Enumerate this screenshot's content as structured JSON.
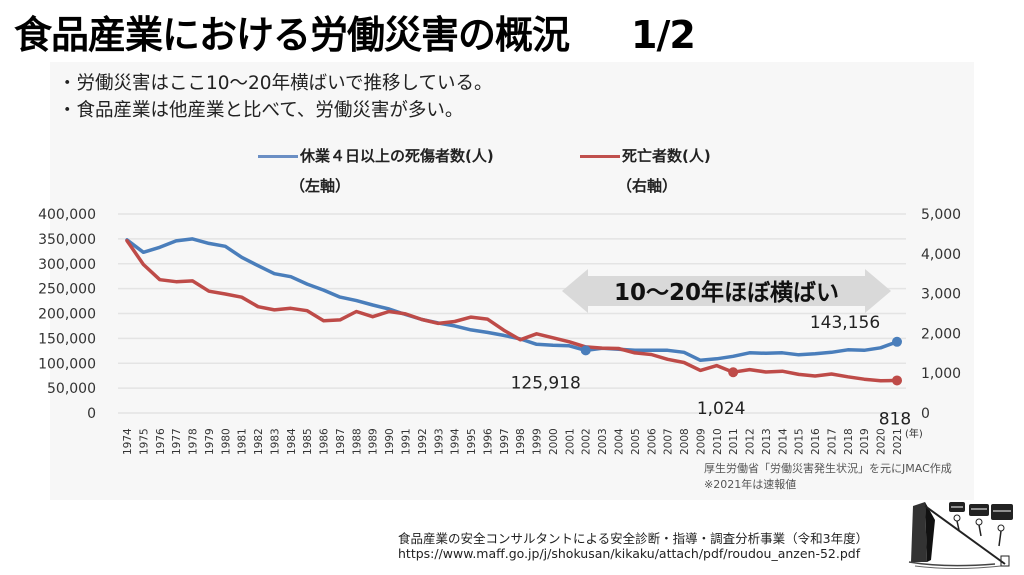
{
  "header": {
    "title": "食品産業における労働災害の概況",
    "page": "1/2"
  },
  "bullets": [
    "・労働災害はここ10～20年横ばいで推移している。",
    "・食品産業は他産業と比べて、労働災害が多い。"
  ],
  "colors": {
    "blue": "#4a7ebb",
    "red": "#be4b48",
    "arrow": "#d9d9d9",
    "grid": "#e4e4e4"
  },
  "chart_data": {
    "type": "line",
    "x": [
      1974,
      1975,
      1976,
      1977,
      1978,
      1979,
      1980,
      1981,
      1982,
      1983,
      1984,
      1985,
      1986,
      1987,
      1988,
      1989,
      1990,
      1991,
      1992,
      1993,
      1994,
      1995,
      1996,
      1997,
      1998,
      1999,
      2000,
      2001,
      2002,
      2003,
      2004,
      2005,
      2006,
      2007,
      2008,
      2009,
      2010,
      2011,
      2012,
      2013,
      2014,
      2015,
      2016,
      2017,
      2018,
      2019,
      2020,
      2021
    ],
    "x_tick_labels": [
      "1974",
      "1975",
      "1976",
      "1977",
      "1978",
      "1979",
      "1980",
      "1981",
      "1982",
      "1983",
      "1984",
      "1985",
      "1986",
      "1987",
      "1988",
      "1989",
      "1990",
      "1991",
      "1992",
      "1993",
      "1994",
      "1995",
      "1996",
      "1997",
      "1998",
      "1999",
      "2000",
      "2001",
      "2002",
      "2003",
      "2004",
      "2005",
      "2006",
      "2007",
      "2008",
      "2009",
      "2010",
      "2011",
      "2012",
      "2013",
      "2014",
      "2015",
      "2016",
      "2017",
      "2018",
      "2019",
      "2020",
      "2021"
    ],
    "xlabel": "(年)",
    "series": [
      {
        "name": "休業４日以上の死傷者数(人)",
        "axis": "left",
        "axis_note": "（左軸）",
        "values": [
          348000,
          323000,
          333000,
          346000,
          350000,
          341000,
          335000,
          313000,
          296000,
          280000,
          274000,
          259000,
          247000,
          233000,
          226000,
          217000,
          209000,
          198000,
          188000,
          181000,
          175000,
          167000,
          162000,
          156000,
          149000,
          138000,
          136000,
          135000,
          125918,
          130000,
          128000,
          126000,
          126000,
          126000,
          122000,
          106000,
          109000,
          114000,
          121000,
          120000,
          121000,
          117000,
          119000,
          122000,
          127000,
          126000,
          131000,
          143156
        ]
      },
      {
        "name": "死亡者数(人)",
        "axis": "right",
        "axis_note": "（右軸）",
        "values": [
          4330,
          3730,
          3350,
          3300,
          3320,
          3060,
          2990,
          2910,
          2670,
          2590,
          2630,
          2570,
          2320,
          2340,
          2550,
          2420,
          2550,
          2490,
          2350,
          2250,
          2300,
          2410,
          2360,
          2080,
          1840,
          1990,
          1890,
          1790,
          1660,
          1630,
          1620,
          1510,
          1470,
          1350,
          1270,
          1070,
          1190,
          1024,
          1090,
          1030,
          1050,
          970,
          930,
          980,
          910,
          850,
          810,
          818
        ]
      }
    ],
    "y_left": {
      "range": [
        0,
        400000
      ],
      "ticks": [
        "0",
        "50,000",
        "100,000",
        "150,000",
        "200,000",
        "250,000",
        "300,000",
        "350,000",
        "400,000"
      ]
    },
    "y_right": {
      "range": [
        0,
        5000
      ],
      "ticks": [
        "0",
        "1,000",
        "2,000",
        "3,000",
        "4,000",
        "5,000"
      ]
    },
    "annotations": [
      {
        "series": 0,
        "year": 2002,
        "label": "125,918"
      },
      {
        "series": 0,
        "year": 2021,
        "label": "143,156"
      },
      {
        "series": 1,
        "year": 2011,
        "label": "1,024"
      },
      {
        "series": 1,
        "year": 2021,
        "label": "818"
      }
    ],
    "arrow_label": "10～20年ほぼ横ばい",
    "grid": true,
    "legend": "top"
  },
  "source": {
    "line1": "厚生労働省「労働災害発生状況」を元にJMAC作成",
    "line2": "※2021年は速報値"
  },
  "footer": {
    "line1": "食品産業の安全コンサルタントによる安全診断・指導・調査分析事業（令和3年度）",
    "line2": "https://www.maff.go.jp/j/shokusan/kikaku/attach/pdf/roudou_anzen-52.pdf"
  }
}
